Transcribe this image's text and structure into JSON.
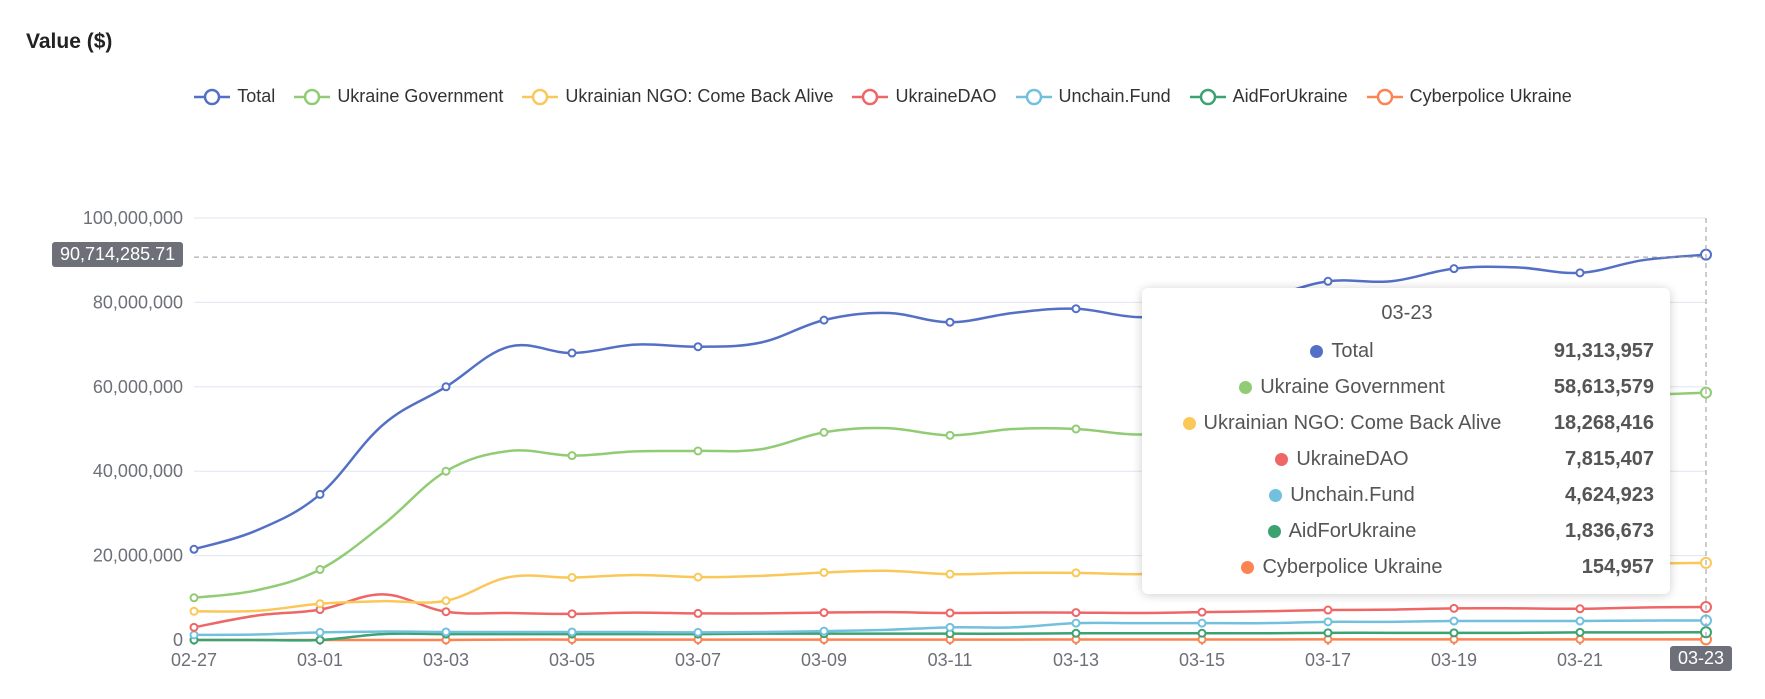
{
  "chart_data": {
    "type": "line",
    "title": "Value ($)",
    "x": [
      "02-27",
      "02-28",
      "03-01",
      "03-02",
      "03-03",
      "03-04",
      "03-05",
      "03-06",
      "03-07",
      "03-08",
      "03-09",
      "03-10",
      "03-11",
      "03-12",
      "03-13",
      "03-14",
      "03-15",
      "03-16",
      "03-17",
      "03-18",
      "03-19",
      "03-20",
      "03-21",
      "03-22",
      "03-23"
    ],
    "x_tick_labels": [
      "02-27",
      "03-01",
      "03-03",
      "03-05",
      "03-07",
      "03-09",
      "03-11",
      "03-13",
      "03-15",
      "03-17",
      "03-19",
      "03-21",
      "03-23"
    ],
    "y_tick_labels": [
      "0",
      "20,000,000",
      "40,000,000",
      "60,000,000",
      "80,000,000",
      "100,000,000"
    ],
    "ylim": [
      0,
      100000000
    ],
    "grid": true,
    "legend_position": "top",
    "crosshair": {
      "x_label": "03-23",
      "y_label": "90,714,285.71",
      "y_value": 90714285.71
    },
    "series": [
      {
        "name": "Total",
        "color": "#5470c6",
        "values": [
          21500000,
          26000000,
          34500000,
          51000000,
          60000000,
          69500000,
          68000000,
          70000000,
          69500000,
          70500000,
          75800000,
          77500000,
          75300000,
          77500000,
          78500000,
          76500000,
          78000000,
          81000000,
          85000000,
          85000000,
          88000000,
          88300000,
          87000000,
          90000000,
          91313957
        ]
      },
      {
        "name": "Ukraine Government",
        "color": "#91cc75",
        "values": [
          10000000,
          11800000,
          16700000,
          27300000,
          40000000,
          44800000,
          43700000,
          44700000,
          44800000,
          45200000,
          49200000,
          50200000,
          48500000,
          50000000,
          50000000,
          48700000,
          50000000,
          52000000,
          54000000,
          54500000,
          56000000,
          56500000,
          57000000,
          58000000,
          58613579
        ]
      },
      {
        "name": "Ukrainian NGO: Come Back Alive",
        "color": "#fac858",
        "values": [
          6800000,
          6900000,
          8600000,
          9200000,
          9300000,
          14900000,
          14800000,
          15400000,
          14900000,
          15200000,
          16000000,
          16400000,
          15600000,
          15900000,
          15900000,
          15600000,
          16200000,
          16500000,
          17000000,
          17200000,
          17500000,
          17600000,
          17800000,
          18100000,
          18268416
        ]
      },
      {
        "name": "UkraineDAO",
        "color": "#ee6666",
        "values": [
          3000000,
          5800000,
          7200000,
          10800000,
          6700000,
          6400000,
          6200000,
          6500000,
          6300000,
          6300000,
          6500000,
          6600000,
          6400000,
          6500000,
          6500000,
          6400000,
          6600000,
          6800000,
          7100000,
          7200000,
          7500000,
          7500000,
          7400000,
          7700000,
          7815407
        ]
      },
      {
        "name": "Unchain.Fund",
        "color": "#73c0de",
        "values": [
          1200000,
          1300000,
          1800000,
          2000000,
          1900000,
          1900000,
          1900000,
          1900000,
          1800000,
          1900000,
          2100000,
          2400000,
          3000000,
          3000000,
          4000000,
          4000000,
          4000000,
          4000000,
          4300000,
          4300000,
          4500000,
          4500000,
          4500000,
          4600000,
          4624923
        ]
      },
      {
        "name": "AidForUkraine",
        "color": "#3ba272",
        "values": [
          0,
          0,
          0,
          1400000,
          1400000,
          1400000,
          1400000,
          1400000,
          1400000,
          1500000,
          1500000,
          1500000,
          1500000,
          1500000,
          1600000,
          1600000,
          1600000,
          1600000,
          1700000,
          1700000,
          1700000,
          1700000,
          1800000,
          1800000,
          1836673
        ]
      },
      {
        "name": "Cyberpolice Ukraine",
        "color": "#fc8452",
        "values": [
          0,
          0,
          0,
          0,
          0,
          100000,
          100000,
          100000,
          100000,
          100000,
          100000,
          100000,
          100000,
          100000,
          120000,
          120000,
          130000,
          130000,
          140000,
          140000,
          140000,
          150000,
          150000,
          150000,
          154957
        ]
      }
    ]
  },
  "tooltip": {
    "title": "03-23",
    "rows": [
      {
        "name": "Total",
        "value": "91,313,957",
        "color": "#5470c6"
      },
      {
        "name": "Ukraine Government",
        "value": "58,613,579",
        "color": "#91cc75"
      },
      {
        "name": "Ukrainian NGO: Come Back Alive",
        "value": "18,268,416",
        "color": "#fac858"
      },
      {
        "name": "UkraineDAO",
        "value": "7,815,407",
        "color": "#ee6666"
      },
      {
        "name": "Unchain.Fund",
        "value": "4,624,923",
        "color": "#73c0de"
      },
      {
        "name": "AidForUkraine",
        "value": "1,836,673",
        "color": "#3ba272"
      },
      {
        "name": "Cyberpolice Ukraine",
        "value": "154,957",
        "color": "#fc8452"
      }
    ]
  }
}
